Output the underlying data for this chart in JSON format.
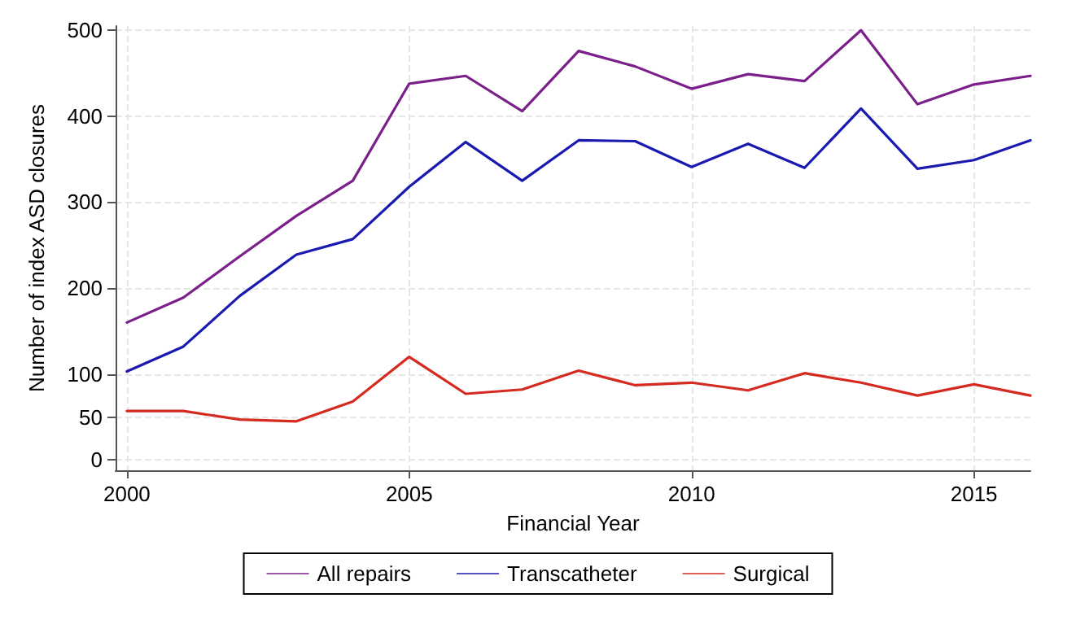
{
  "chart_data": {
    "type": "line",
    "xlabel": "Financial Year",
    "ylabel": "Number of index ASD closures",
    "x": [
      2000,
      2001,
      2002,
      2003,
      2004,
      2005,
      2006,
      2007,
      2008,
      2009,
      2010,
      2011,
      2012,
      2013,
      2014,
      2015,
      2016
    ],
    "series": [
      {
        "name": "All repairs",
        "color": "#7b1f8a",
        "values": [
          160,
          189,
          237,
          284,
          325,
          438,
          447,
          406,
          476,
          458,
          432,
          449,
          441,
          500,
          414,
          437,
          447
        ]
      },
      {
        "name": "Transcatheter",
        "color": "#1a1ab0",
        "values": [
          103,
          132,
          191,
          239,
          257,
          318,
          370,
          325,
          372,
          371,
          341,
          368,
          340,
          409,
          339,
          349,
          372
        ]
      },
      {
        "name": "Surgical",
        "color": "#d42a20",
        "values": [
          57,
          57,
          47,
          45,
          68,
          120,
          77,
          82,
          104,
          87,
          90,
          81,
          101,
          90,
          75,
          88,
          75
        ]
      }
    ],
    "xlim": [
      1999.8,
      2016
    ],
    "xticks": [
      2000,
      2005,
      2010,
      2015
    ],
    "ylim": [
      -12,
      505
    ],
    "yticks": [
      0,
      50,
      100,
      200,
      300,
      400,
      500
    ],
    "grid": true,
    "legend": "bottom",
    "marker": "none",
    "line_style": "solid"
  }
}
